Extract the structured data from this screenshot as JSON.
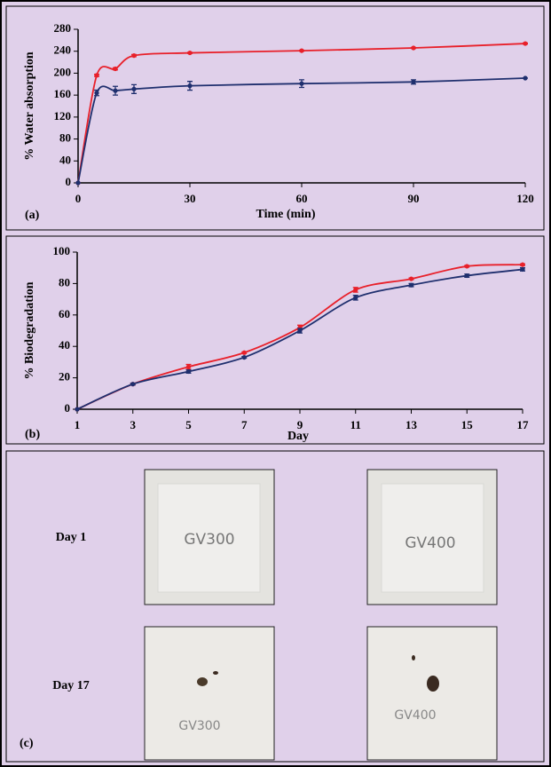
{
  "chart_data": [
    {
      "type": "line",
      "panel_label": "(a)",
      "x_label": "Time (min)",
      "y_label": "% Water absorption",
      "x": [
        0,
        5,
        10,
        15,
        30,
        60,
        90,
        120
      ],
      "xlim": [
        0,
        120
      ],
      "xticks": [
        0,
        30,
        60,
        90,
        120
      ],
      "ylim": [
        0,
        280
      ],
      "yticks": [
        0,
        40,
        80,
        120,
        160,
        200,
        240,
        280
      ],
      "series": [
        {
          "color": "#e8202a",
          "values": [
            0,
            196,
            208,
            232,
            237,
            241,
            246,
            254
          ],
          "errors": [
            0,
            2,
            2,
            2,
            1,
            1,
            1,
            1
          ]
        },
        {
          "color": "#1f2f6e",
          "values": [
            0,
            164,
            168,
            171,
            177,
            181,
            184,
            191
          ],
          "errors": [
            0,
            5,
            8,
            8,
            8,
            7,
            4,
            0
          ]
        }
      ]
    },
    {
      "type": "line",
      "panel_label": "(b)",
      "x_label": "Day",
      "y_label": "% Biodegradation",
      "x": [
        1,
        3,
        5,
        7,
        9,
        11,
        13,
        15,
        17
      ],
      "xlim": [
        1,
        17
      ],
      "xticks": [
        1,
        3,
        5,
        7,
        9,
        11,
        13,
        15,
        17
      ],
      "ylim": [
        0,
        100
      ],
      "yticks": [
        0,
        20,
        40,
        60,
        80,
        100
      ],
      "series": [
        {
          "color": "#e8202a",
          "values": [
            0,
            16,
            27,
            36,
            52,
            76,
            83,
            91,
            92
          ],
          "errors": [
            0,
            0.5,
            1.5,
            0.5,
            1.5,
            1.5,
            0.5,
            0.5,
            0.5
          ]
        },
        {
          "color": "#1f2f6e",
          "values": [
            0,
            16,
            24,
            33,
            50,
            71,
            79,
            85,
            89
          ],
          "errors": [
            0,
            0.5,
            1,
            0.5,
            1.5,
            1.5,
            1,
            1,
            1
          ]
        }
      ]
    }
  ],
  "panel_c": {
    "panel_label": "(c)",
    "rows": [
      {
        "label": "Day 1",
        "samples": [
          "GV300",
          "GV400"
        ]
      },
      {
        "label": "Day 17",
        "samples": [
          "GV300",
          "GV400"
        ]
      }
    ]
  }
}
